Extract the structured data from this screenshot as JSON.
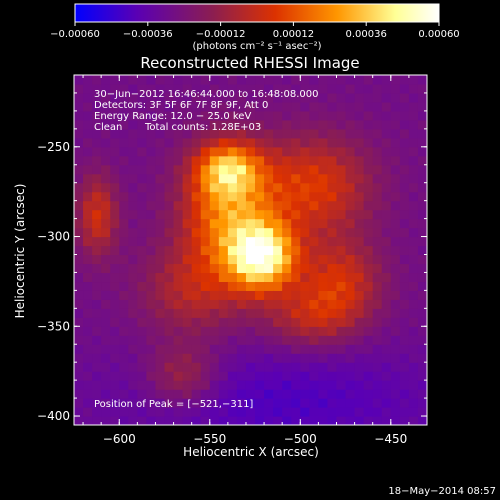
{
  "chart_data": {
    "type": "heatmap",
    "title": "Reconstructed RHESSI Image",
    "xlabel": "Heliocentric X (arcsec)",
    "ylabel": "Heliocentric Y (arcsec)",
    "xlim": [
      -625,
      -430
    ],
    "ylim": [
      -405,
      -210
    ],
    "x_ticks": [
      -600,
      -550,
      -500,
      -450
    ],
    "x_tick_labels": [
      "−600",
      "−550",
      "−500",
      "−450"
    ],
    "y_ticks": [
      -250,
      -300,
      -350,
      -400
    ],
    "y_tick_labels": [
      "−250",
      "−300",
      "−350",
      "−400"
    ],
    "colorbar": {
      "range": [
        -0.0006,
        0.0006
      ],
      "ticks": [
        -0.0006,
        -0.00036,
        -0.00012,
        0.00012,
        0.00036,
        0.0006
      ],
      "tick_labels": [
        "−0.00060",
        "−0.00036",
        "−0.00012",
        "0.00012",
        "0.00036",
        "0.00060"
      ],
      "unit_label": "(photons cm⁻² s⁻¹ asec⁻²)",
      "colors": [
        "#0000ff",
        "#5a00b4",
        "#8c1e50",
        "#dc3200",
        "#ff9600",
        "#ffff96",
        "#ffffff"
      ]
    },
    "peak": {
      "x": -521,
      "y": -311
    },
    "sources": [
      {
        "x": -521,
        "y": -311,
        "sx": 13,
        "sy": 13,
        "amp": 1.0
      },
      {
        "x": -540,
        "y": -285,
        "sx": 18,
        "sy": 24,
        "amp": 0.65
      },
      {
        "x": -540,
        "y": -262,
        "sx": 12,
        "sy": 10,
        "amp": 0.55
      },
      {
        "x": -492,
        "y": -272,
        "sx": 22,
        "sy": 20,
        "amp": 0.45
      },
      {
        "x": -478,
        "y": -325,
        "sx": 16,
        "sy": 16,
        "amp": 0.4
      },
      {
        "x": -495,
        "y": -345,
        "sx": 18,
        "sy": 12,
        "amp": 0.3
      },
      {
        "x": -612,
        "y": -288,
        "sx": 8,
        "sy": 16,
        "amp": 0.4
      },
      {
        "x": -560,
        "y": -330,
        "sx": 20,
        "sy": 18,
        "amp": 0.3
      },
      {
        "x": -565,
        "y": -378,
        "sx": 14,
        "sy": 12,
        "amp": 0.3
      }
    ],
    "background_colors": {
      "negative_region": "#3a1470",
      "negative_region_center": {
        "x": -510,
        "y": -392
      }
    }
  },
  "annotations": {
    "time_range": "30−Jun−2012 16:46:44.000 to 16:48:08.000",
    "detectors": "Detectors: 3F 5F 6F 7F 8F 9F, Att 0",
    "energy_range": "Energy Range: 12.0 − 25.0 keV",
    "method": "Clean",
    "total_counts": "Total counts: 1.28E+03",
    "peak_position": "Position of Peak = [−521,−311]"
  },
  "footer": {
    "date": "18−May−2014 08:57"
  }
}
